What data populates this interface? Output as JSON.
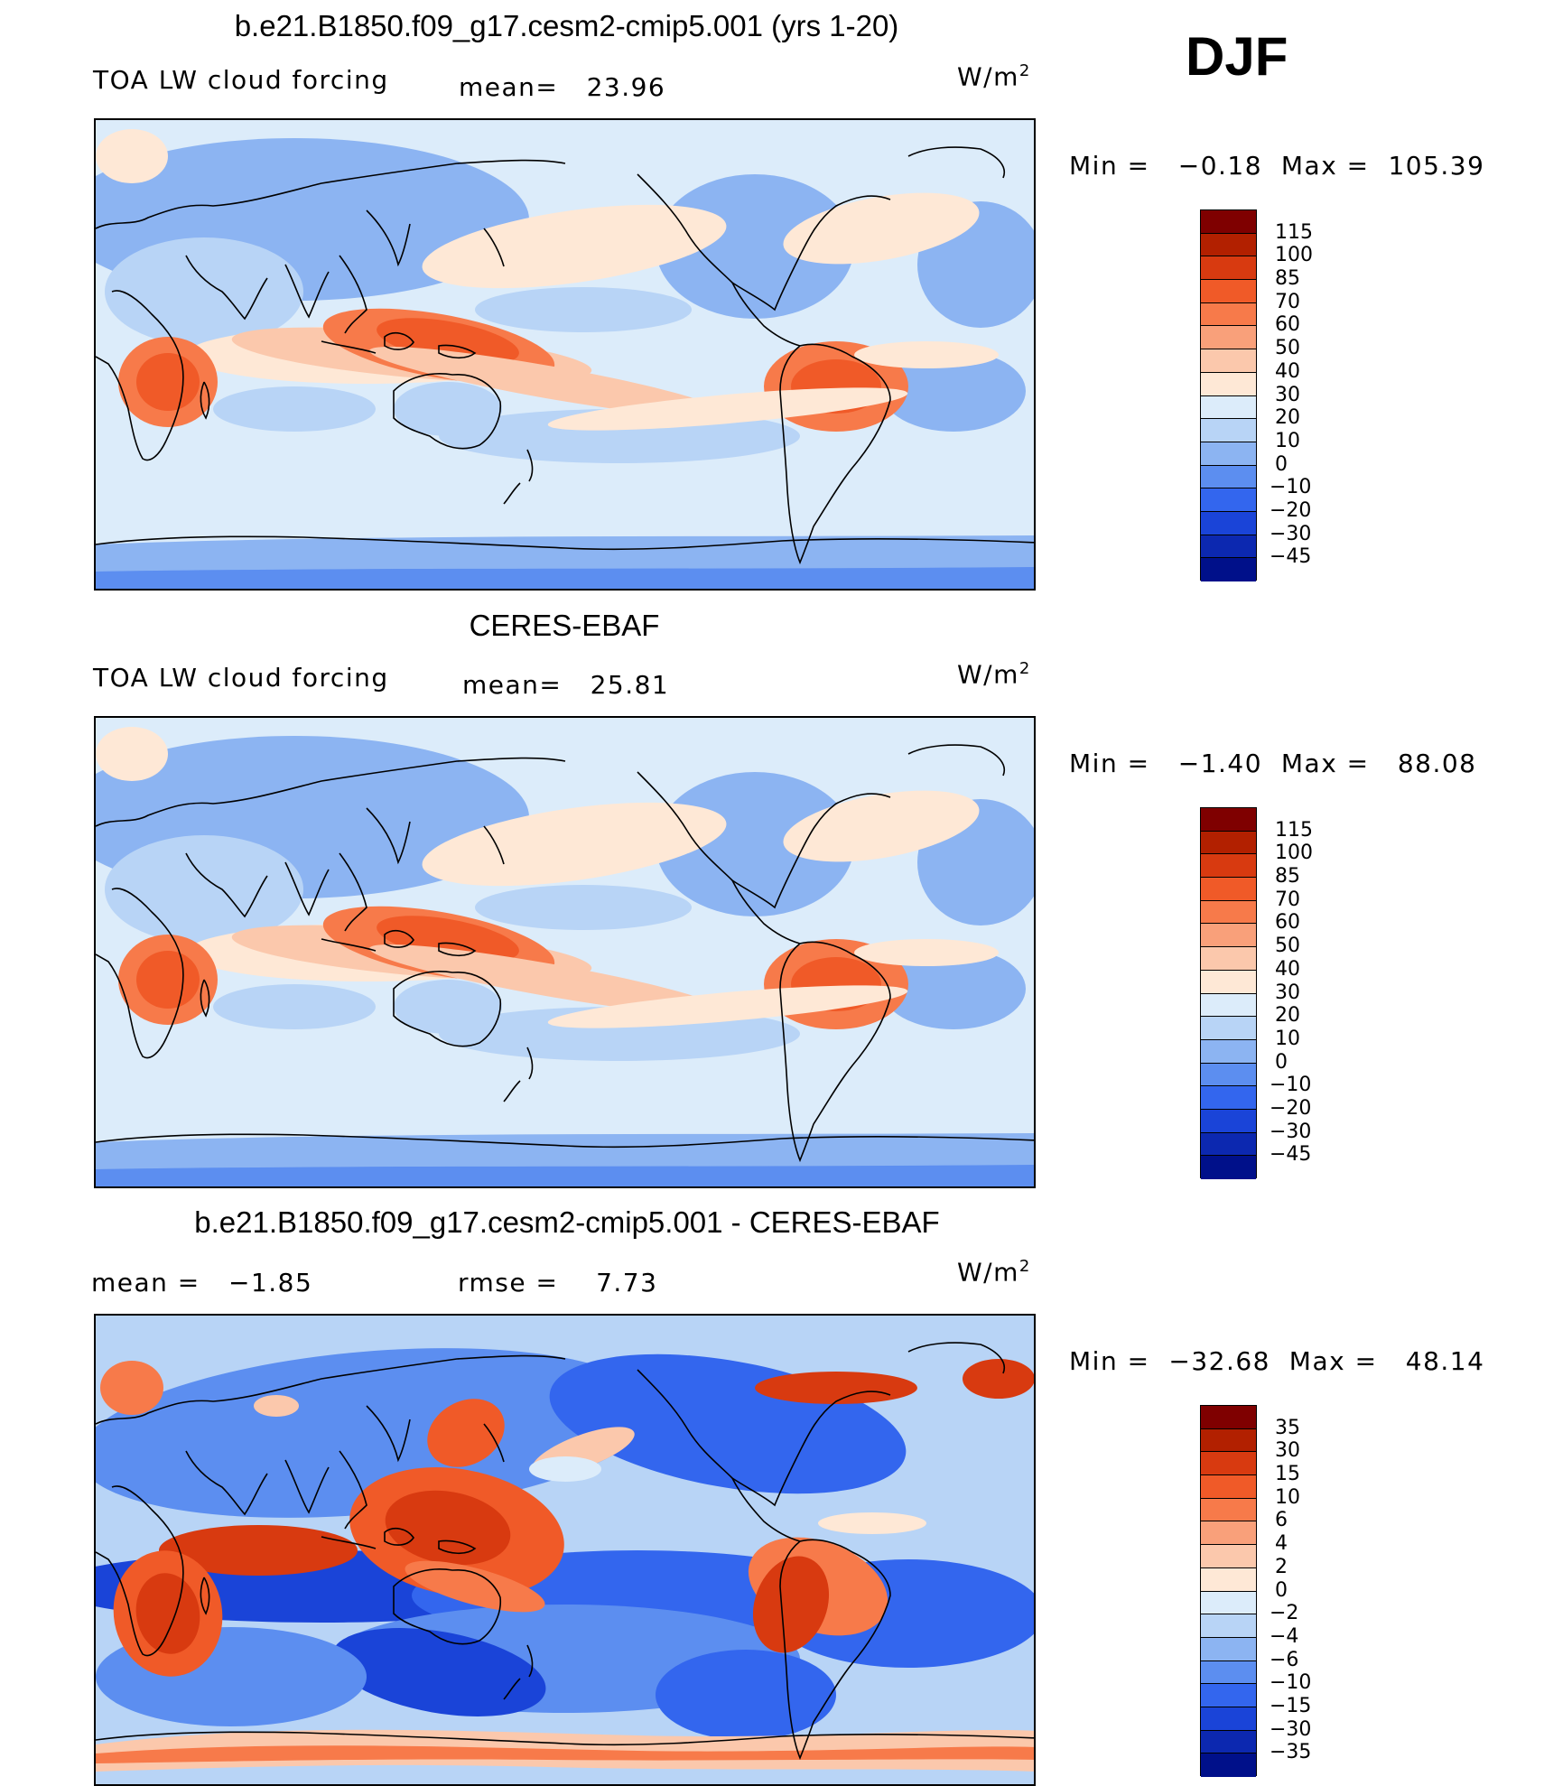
{
  "season": "DJF",
  "colors": {
    "top": [
      "#7f0000",
      "#b22000",
      "#d83a10",
      "#f05a28",
      "#f77a4a",
      "#f9a07a",
      "#fbc8ac",
      "#fee8d6",
      "#dcecfa",
      "#b8d4f6",
      "#8cb4f2",
      "#5c8ef0",
      "#3366ee",
      "#1a44d8",
      "#0c28b0",
      "#00108a"
    ],
    "diff": [
      "#7f0000",
      "#b22000",
      "#d83a10",
      "#f05a28",
      "#f77a4a",
      "#f9a07a",
      "#fbc8ac",
      "#fee8d6",
      "#dcecfa",
      "#b8d4f6",
      "#8cb4f2",
      "#5c8ef0",
      "#3366ee",
      "#1a44d8",
      "#0c28b0",
      "#00108a"
    ]
  },
  "chart_data": [
    {
      "type": "heatmap",
      "title": "b.e21.B1850.f09_g17.cesm2-cmip5.001 (yrs 1-20)",
      "variable": "TOA LW cloud forcing",
      "mean_label": "mean=",
      "mean": "23.96",
      "units_label": "W/m",
      "units_exp": "2",
      "min_label": "Min =",
      "min": "−0.18",
      "max_label": "Max =",
      "max": "105.39",
      "colorbar_levels": [
        "115",
        "100",
        "85",
        "70",
        "60",
        "50",
        "40",
        "30",
        "20",
        "10",
        "0",
        "−10",
        "−20",
        "−30",
        "−45"
      ]
    },
    {
      "type": "heatmap",
      "title": "CERES-EBAF",
      "variable": "TOA LW cloud forcing",
      "mean_label": "mean=",
      "mean": "25.81",
      "units_label": "W/m",
      "units_exp": "2",
      "min_label": "Min =",
      "min": "−1.40",
      "max_label": "Max =",
      "max": "88.08",
      "colorbar_levels": [
        "115",
        "100",
        "85",
        "70",
        "60",
        "50",
        "40",
        "30",
        "20",
        "10",
        "0",
        "−10",
        "−20",
        "−30",
        "−45"
      ]
    },
    {
      "type": "heatmap",
      "title": "b.e21.B1850.f09_g17.cesm2-cmip5.001 - CERES-EBAF",
      "mean_label": "mean =",
      "mean": "−1.85",
      "rmse_label": "rmse =",
      "rmse": "7.73",
      "units_label": "W/m",
      "units_exp": "2",
      "min_label": "Min =",
      "min": "−32.68",
      "max_label": "Max =",
      "max": "48.14",
      "colorbar_levels": [
        "35",
        "30",
        "15",
        "10",
        "6",
        "4",
        "2",
        "0",
        "−2",
        "−4",
        "−6",
        "−10",
        "−15",
        "−30",
        "−35"
      ]
    }
  ]
}
